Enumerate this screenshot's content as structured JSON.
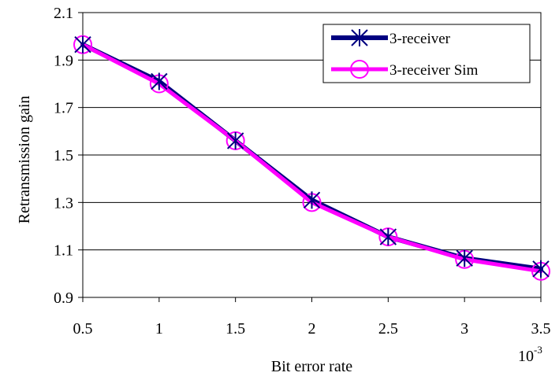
{
  "chart_data": {
    "type": "line",
    "xlabel": "Bit error rate",
    "ylabel": "Retransmission gain",
    "x_scale_label": {
      "base": "10",
      "exponent": "-3"
    },
    "x": [
      0.5,
      1,
      1.5,
      2,
      2.5,
      3,
      3.5
    ],
    "x_tick_labels": [
      "0.5",
      "1",
      "1.5",
      "2",
      "2.5",
      "3",
      "3.5"
    ],
    "y_tick_labels": [
      "0.9",
      "1.1",
      "1.3",
      "1.5",
      "1.7",
      "1.9",
      "2.1"
    ],
    "xlim": [
      0.5,
      3.5
    ],
    "ylim": [
      0.9,
      2.1
    ],
    "y_ticks": [
      0.9,
      1.1,
      1.3,
      1.5,
      1.7,
      1.9,
      2.1
    ],
    "grid": "horizontal",
    "legend_position": "top-right",
    "series": [
      {
        "name": "3-receiver",
        "values": [
          1.965,
          1.81,
          1.56,
          1.31,
          1.155,
          1.065,
          1.02
        ],
        "color": "#000080",
        "marker": "asterisk"
      },
      {
        "name": "3-receiver Sim",
        "values": [
          1.965,
          1.8,
          1.56,
          1.3,
          1.155,
          1.06,
          1.01
        ],
        "color": "#ff00ff",
        "marker": "circle"
      }
    ]
  }
}
